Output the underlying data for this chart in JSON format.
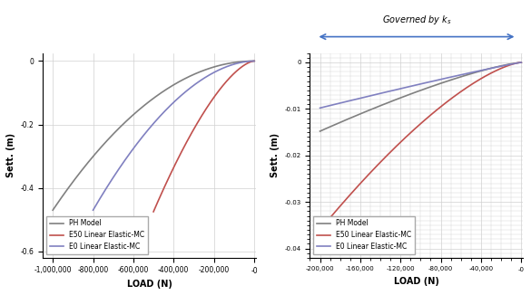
{
  "left_xlim": [
    -1050000,
    10000
  ],
  "left_ylim": [
    -0.62,
    0.025
  ],
  "right_xlim": [
    -210000,
    2000
  ],
  "right_ylim": [
    -0.042,
    0.002
  ],
  "colors": {
    "PH": "#808080",
    "E50": "#c0504d",
    "E0": "#8080c0"
  },
  "legend_labels": [
    "PH Model",
    "E50 Linear Elastic-MC",
    "E0 Linear Elastic-MC"
  ],
  "xlabel": "LOAD (N)",
  "ylabel": "Sett. (m)",
  "annotation_text": "Governed by $k_s$",
  "arrow_color": "#4472c4",
  "grid_color": "#d0d0d0",
  "background_color": "#ffffff",
  "left_xticks": [
    0,
    -200000,
    -400000,
    -600000,
    -800000,
    -1000000
  ],
  "left_yticks": [
    0,
    -0.2,
    -0.4,
    -0.6
  ],
  "right_xticks": [
    0,
    -40000,
    -80000,
    -120000,
    -160000,
    -200000
  ],
  "right_yticks": [
    0,
    -0.01,
    -0.02,
    -0.03,
    -0.04
  ]
}
